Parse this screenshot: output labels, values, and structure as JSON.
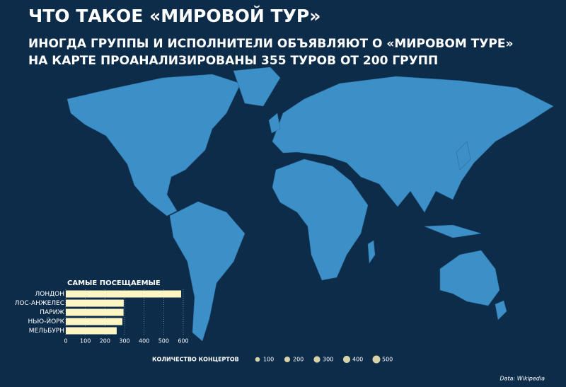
{
  "header": {
    "title": "ЧТО ТАКОЕ «МИРОВОЙ ТУР»",
    "subtitle_1": "ИНОГДА ГРУППЫ И ИСПОЛНИТЕЛИ ОБЪЯВЛЯЮТ О «МИРОВОМ ТУРЕ»",
    "subtitle_2": "НА КАРТЕ ПРОАНАЛИЗИРОВАНЫ 355 ТУРОВ ОТ 200 ГРУПП"
  },
  "chart_data": {
    "type": "hbar",
    "title": "САМЫЕ ПОСЕЩАЕМЫЕ",
    "categories": [
      "ЛОНДОН",
      "ЛОС-АНЖЕЛЕС",
      "ПАРИЖ",
      "НЬЮ-ЙОРК",
      "МЕЛЬБУРН"
    ],
    "values": [
      589,
      296,
      295,
      289,
      260
    ],
    "color": "#fdf6c3",
    "xlim": [
      0,
      600
    ],
    "xticks": [
      0,
      100,
      200,
      300,
      400,
      500,
      600
    ],
    "grid": true
  },
  "size_legend": {
    "title": "КОЛИЧЕСТВО КОНЦЕРТОВ",
    "values": [
      100,
      200,
      300,
      400,
      500
    ],
    "color": "#d8d2a8"
  },
  "source": "Data: Wikipedia"
}
